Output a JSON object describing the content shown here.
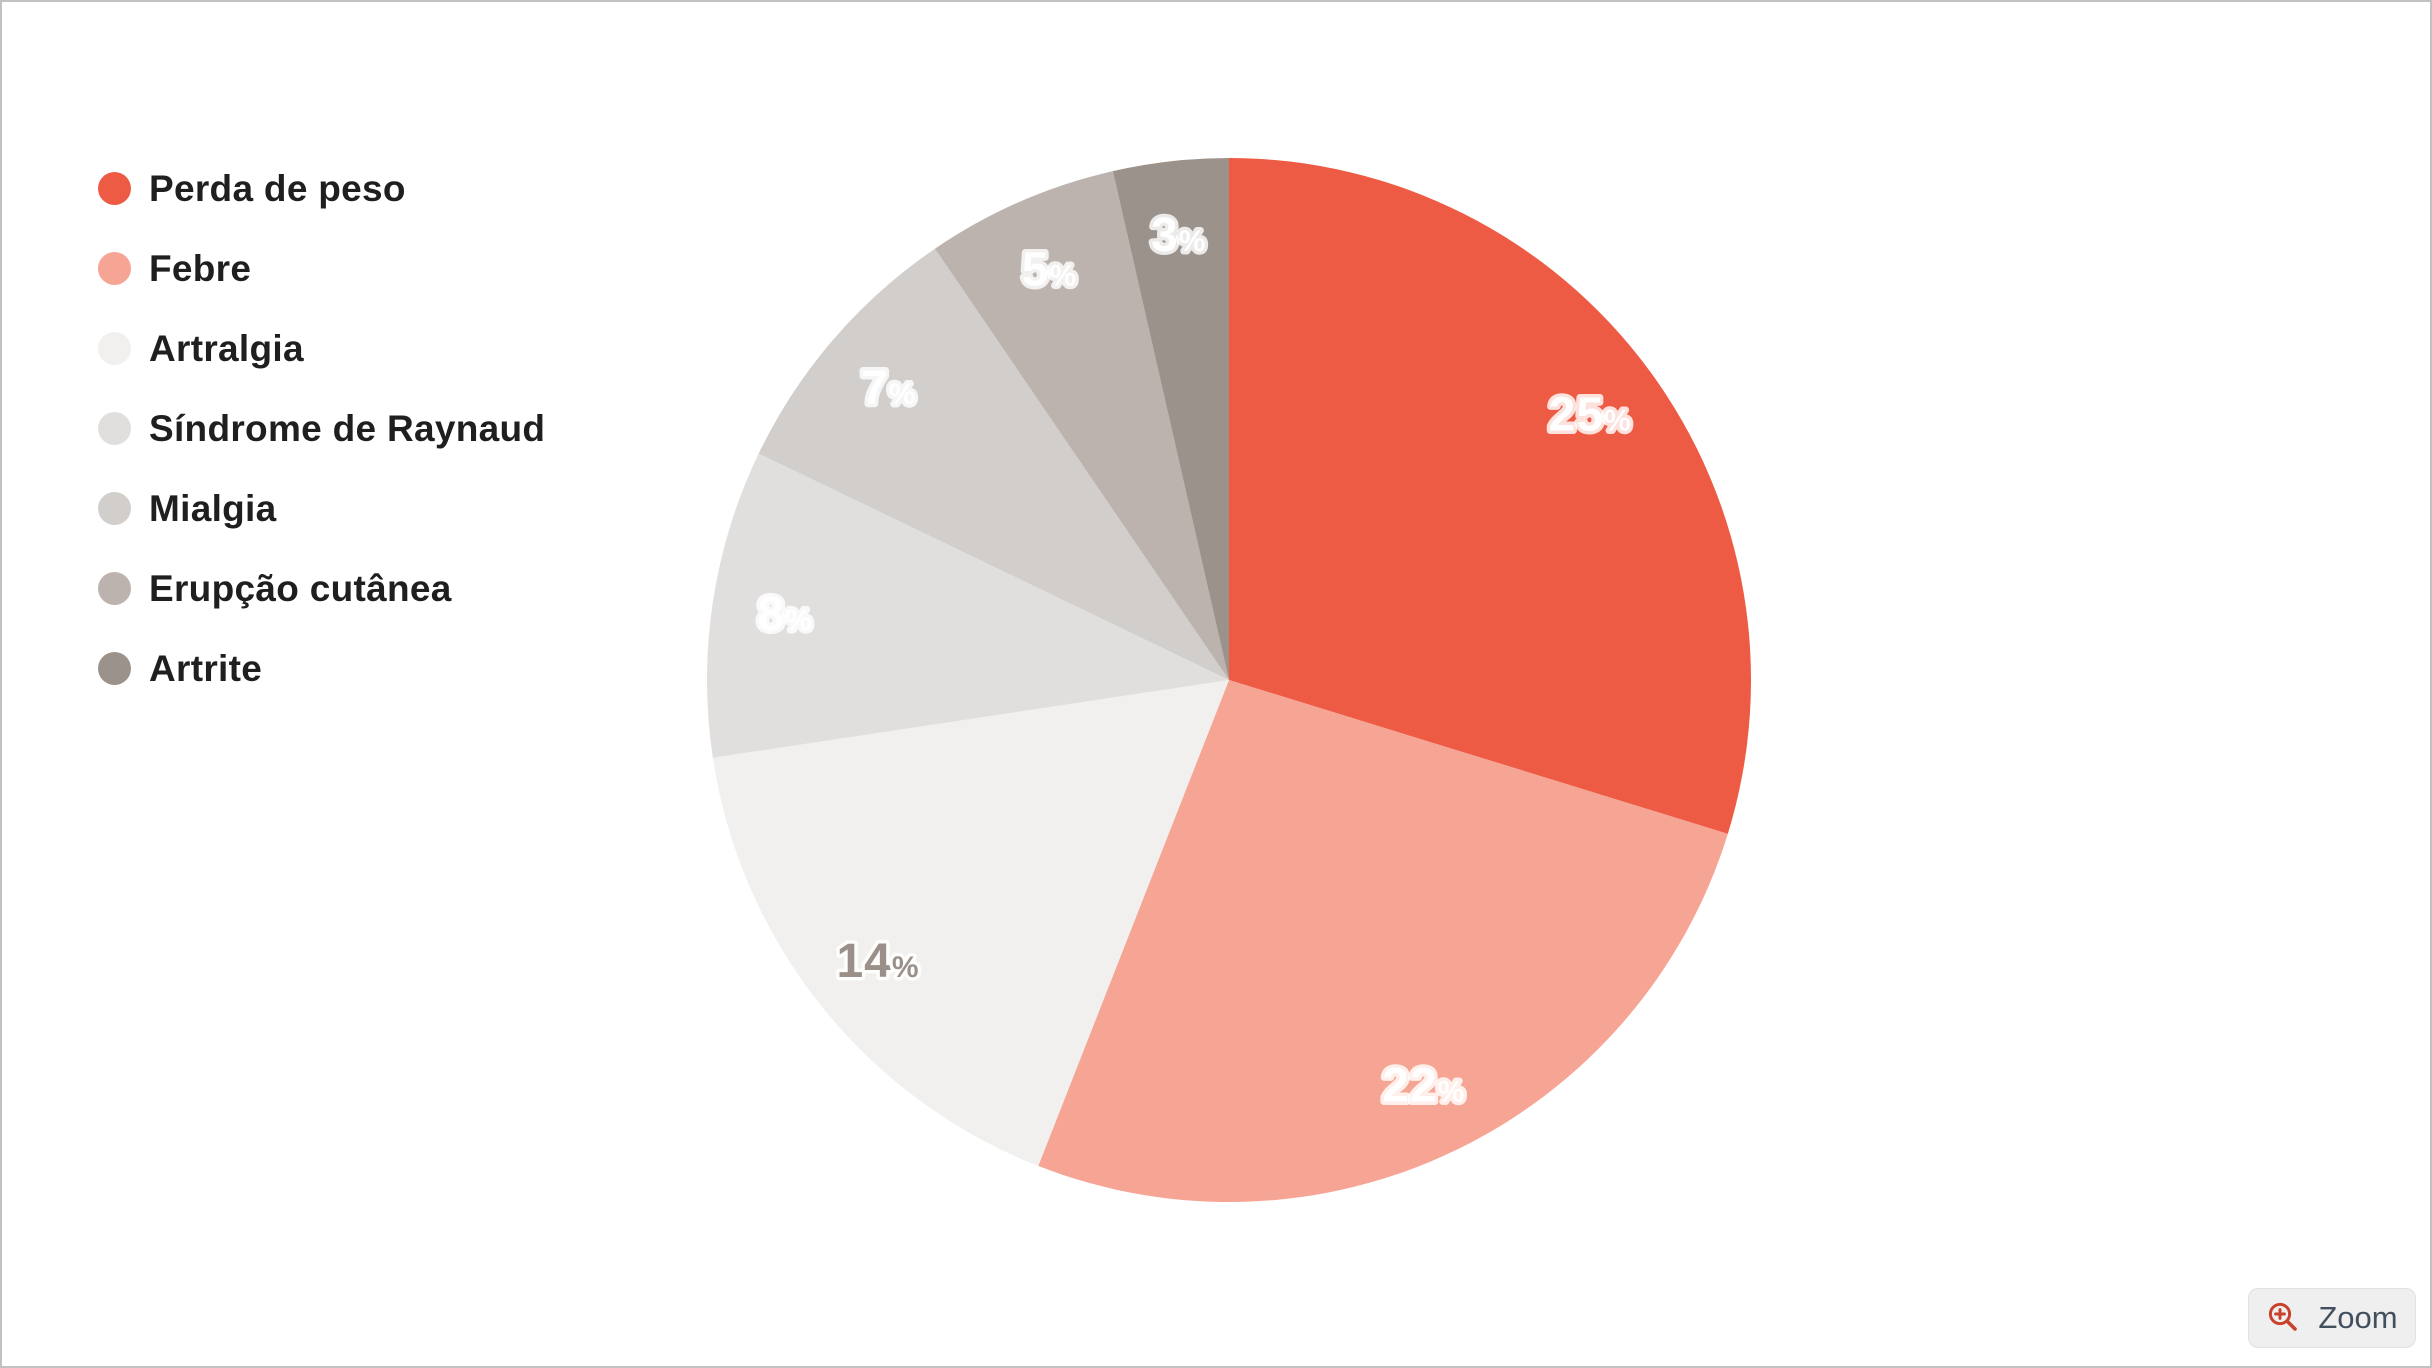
{
  "page": {
    "background": "#ffffff",
    "border_color": "#c2c2c2"
  },
  "chart_data": {
    "type": "pie",
    "title": "",
    "legend_position": "left",
    "start_angle_deg": 0,
    "direction": "clockwise",
    "values_sum": 84,
    "unit": "%",
    "slices": [
      {
        "label": "Perda de peso",
        "value": 25,
        "color": "#ee5b45",
        "label_color": "#ffffff"
      },
      {
        "label": "Febre",
        "value": 22,
        "color": "#f6a493",
        "label_color": "#ffffff"
      },
      {
        "label": "Artralgia",
        "value": 14,
        "color": "#f1f0ee",
        "label_color": "#9a9089"
      },
      {
        "label": "Síndrome de Raynaud",
        "value": 8,
        "color": "#e1dfdd",
        "label_color": "#ffffff"
      },
      {
        "label": "Mialgia",
        "value": 7,
        "color": "#d2cecb",
        "label_color": "#ffffff"
      },
      {
        "label": "Erupção cutânea",
        "value": 5,
        "color": "#bcb3ae",
        "label_color": "#ffffff"
      },
      {
        "label": "Artrite",
        "value": 3,
        "color": "#9c928c",
        "label_color": "#ffffff"
      }
    ]
  },
  "zoom_button": {
    "label": "Zoom",
    "icon": "magnifier-plus-icon",
    "icon_color": "#c7432e",
    "text_color": "#42505e",
    "background": "#efefef"
  }
}
